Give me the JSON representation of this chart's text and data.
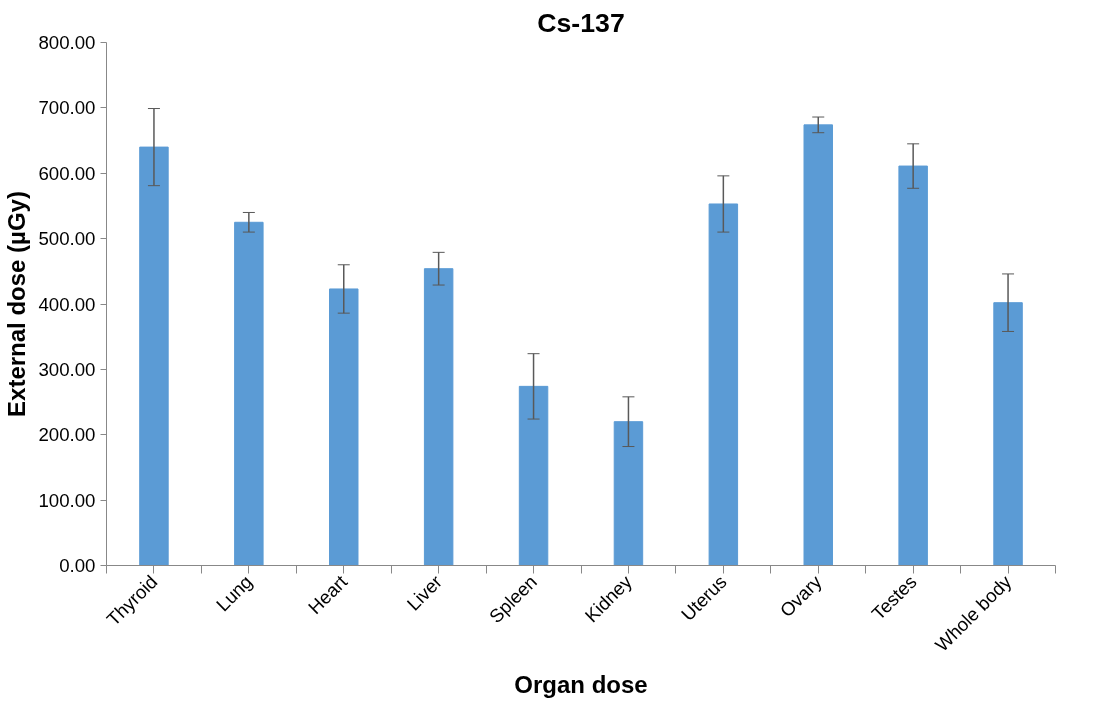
{
  "chart_data": {
    "type": "bar",
    "title": "Cs-137",
    "xlabel": "Organ dose",
    "ylabel": "External dose (µGy)",
    "categories": [
      "Thyroid",
      "Lung",
      "Heart",
      "Liver",
      "Spleen",
      "Kidney",
      "Uterus",
      "Ovary",
      "Testes",
      "Whole body"
    ],
    "values": [
      640,
      525,
      423,
      454,
      274,
      220,
      553,
      674,
      611,
      402
    ],
    "errors": [
      59,
      15,
      37,
      25,
      50,
      38,
      43,
      12,
      34,
      44
    ],
    "color": "#5b9bd5",
    "ylim": [
      0,
      800
    ],
    "yticks": [
      {
        "value": 0,
        "label": "0.00"
      },
      {
        "value": 100,
        "label": "100.00"
      },
      {
        "value": 200,
        "label": "200.00"
      },
      {
        "value": 300,
        "label": "300.00"
      },
      {
        "value": 400,
        "label": "400.00"
      },
      {
        "value": 500,
        "label": "500.00"
      },
      {
        "value": 600,
        "label": "600.00"
      },
      {
        "value": 700,
        "label": "700.00"
      },
      {
        "value": 800,
        "label": "800.00"
      }
    ],
    "grid": false
  }
}
